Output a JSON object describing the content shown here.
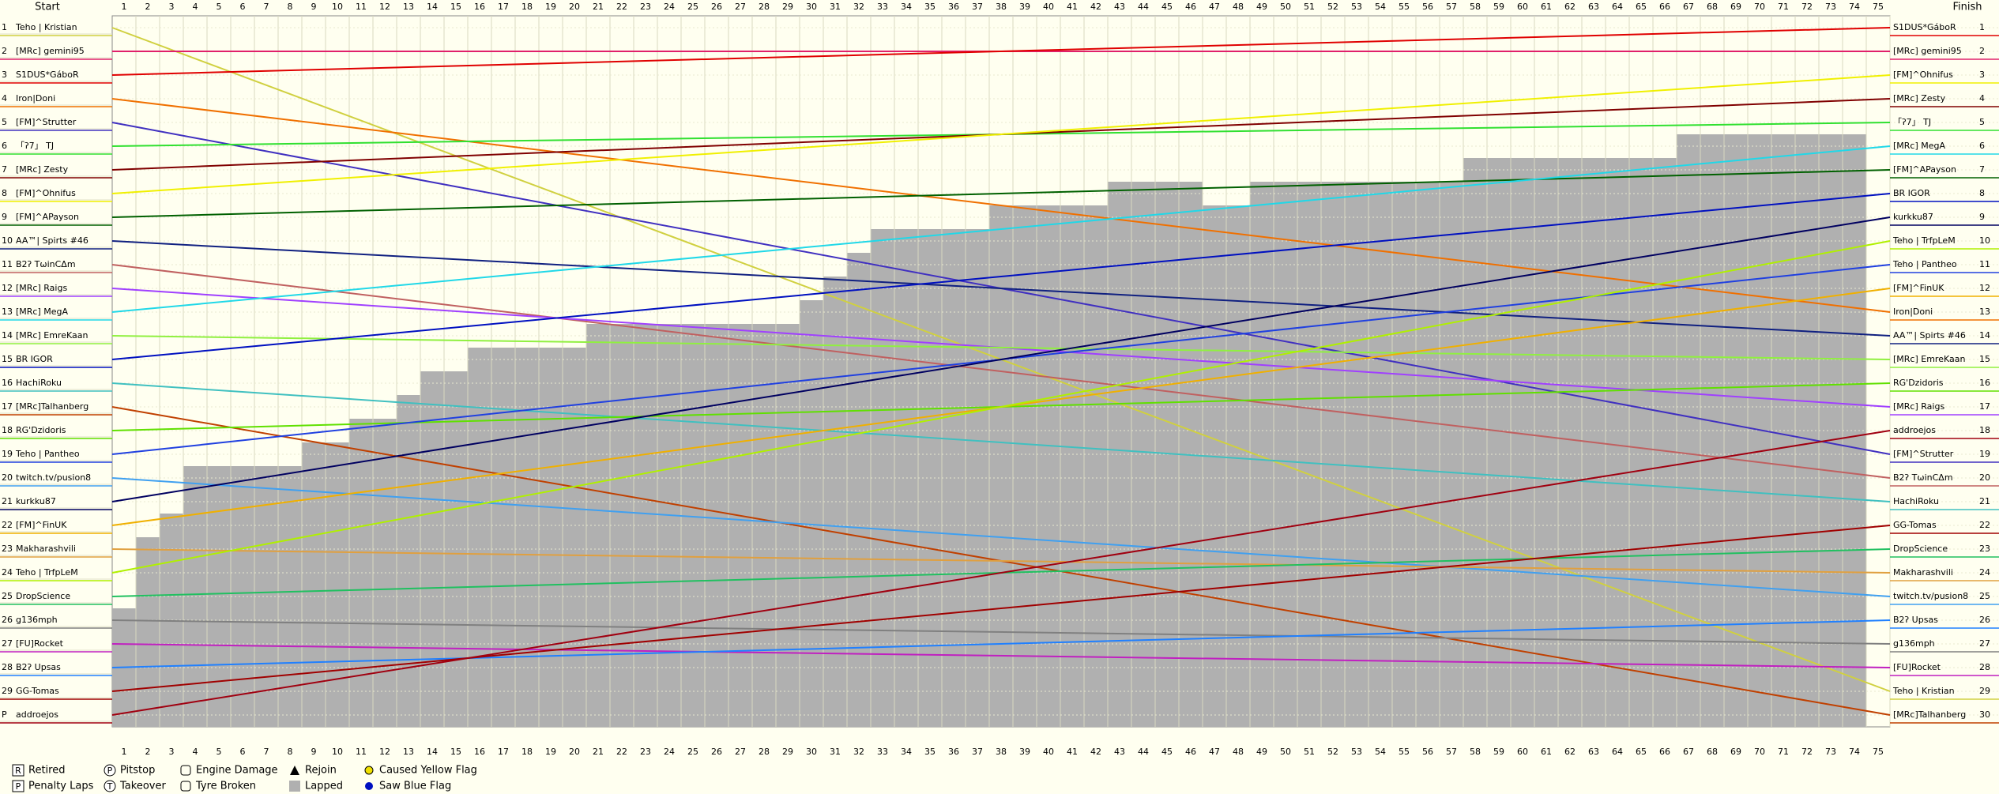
{
  "chart_data": {
    "type": "position",
    "start_title": "Start",
    "finish_title": "Finish",
    "x": [
      0,
      75
    ],
    "xlim": [
      0,
      75
    ],
    "xticks": [
      1,
      2,
      3,
      4,
      5,
      6,
      7,
      8,
      9,
      10,
      11,
      12,
      13,
      14,
      15,
      16,
      17,
      18,
      19,
      20,
      21,
      22,
      23,
      24,
      25,
      26,
      27,
      28,
      29,
      30,
      31,
      32,
      33,
      34,
      35,
      36,
      37,
      38,
      39,
      40,
      41,
      42,
      43,
      44,
      45,
      46,
      47,
      48,
      49,
      50,
      51,
      52,
      53,
      54,
      55,
      56,
      57,
      58,
      59,
      60,
      61,
      62,
      63,
      64,
      65,
      66,
      67,
      68,
      69,
      70,
      71,
      72,
      73,
      74,
      75
    ],
    "ylim": [
      1,
      30
    ],
    "yticks": [
      1,
      2,
      3,
      4,
      5,
      6,
      7,
      8,
      9,
      10,
      11,
      12,
      13,
      14,
      15,
      16,
      17,
      18,
      19,
      20,
      21,
      22,
      23,
      24,
      25,
      26,
      27,
      28,
      29,
      {
        "value": 30,
        "label": "P"
      }
    ],
    "y2ticks": [
      1,
      2,
      3,
      4,
      5,
      6,
      7,
      8,
      9,
      10,
      11,
      12,
      13,
      14,
      15,
      16,
      17,
      18,
      19,
      20,
      21,
      22,
      23,
      24,
      25,
      26,
      27,
      28,
      29,
      30
    ],
    "series": [
      {
        "name": "Teho | Kristian",
        "color": "#d0d040",
        "values": [
          1,
          29
        ]
      },
      {
        "name": "[MRc] gemini95",
        "color": "#e0206a",
        "values": [
          2,
          2
        ]
      },
      {
        "name": "S1DUS*GáboR",
        "color": "#e00000",
        "values": [
          3,
          1
        ]
      },
      {
        "name": "Iron|Doni",
        "color": "#f07000",
        "values": [
          4,
          13
        ]
      },
      {
        "name": "[FM]^Strutter",
        "color": "#4030c0",
        "values": [
          5,
          19
        ]
      },
      {
        "name": "「ʔ7」 TJ",
        "color": "#30e030",
        "values": [
          6,
          5
        ]
      },
      {
        "name": "[MRc] Zesty",
        "color": "#800000",
        "values": [
          7,
          4
        ]
      },
      {
        "name": "[FM]^Ohnifus",
        "color": "#f0f000",
        "values": [
          8,
          3
        ]
      },
      {
        "name": "[FM]^APayson",
        "color": "#006000",
        "values": [
          9,
          7
        ]
      },
      {
        "name": "AA™| Spirts #46",
        "color": "#102080",
        "values": [
          10,
          14
        ]
      },
      {
        "name": "B2ʔ TωinCΔm",
        "color": "#c06060",
        "values": [
          11,
          20
        ]
      },
      {
        "name": "[MRc] Raigs",
        "color": "#a040ff",
        "values": [
          12,
          17
        ]
      },
      {
        "name": "[MRc] MegA",
        "color": "#20d8e8",
        "values": [
          13,
          6
        ]
      },
      {
        "name": "[MRc] EmreKaan",
        "color": "#90f040",
        "values": [
          14,
          15
        ]
      },
      {
        "name": "BR IGOR",
        "color": "#0010c0",
        "values": [
          15,
          8
        ]
      },
      {
        "name": "HachiRoku",
        "color": "#40c0c0",
        "values": [
          16,
          21
        ]
      },
      {
        "name": "[MRc]Talhanberg",
        "color": "#c04000",
        "values": [
          17,
          30
        ]
      },
      {
        "name": "RG'Dzidoris",
        "color": "#60e000",
        "values": [
          18,
          16
        ]
      },
      {
        "name": "Teho | Pantheo",
        "color": "#2040e0",
        "values": [
          19,
          11
        ]
      },
      {
        "name": "twitch.tv/pusion8",
        "color": "#40a0f0",
        "values": [
          20,
          25
        ]
      },
      {
        "name": "kurkku87",
        "color": "#000060",
        "values": [
          21,
          9
        ]
      },
      {
        "name": "[FM]^FinUK",
        "color": "#f0b000",
        "values": [
          22,
          12
        ]
      },
      {
        "name": "Makharashvili",
        "color": "#e0a040",
        "values": [
          23,
          24
        ]
      },
      {
        "name": "Teho | TrfpLeM",
        "color": "#b0f000",
        "values": [
          24,
          10
        ]
      },
      {
        "name": "DropScience",
        "color": "#20c060",
        "values": [
          25,
          23
        ]
      },
      {
        "name": "g136mph",
        "color": "#808080",
        "values": [
          26,
          27
        ]
      },
      {
        "name": "[FU]Rocket",
        "color": "#c020c0",
        "values": [
          27,
          28
        ]
      },
      {
        "name": "B2ʔ Upsas",
        "color": "#2080ff",
        "values": [
          28,
          26
        ]
      },
      {
        "name": "GG-Tomas",
        "color": "#a00000",
        "values": [
          29,
          22
        ]
      },
      {
        "name": "addroejos",
        "color": "#a00010",
        "values": [
          30,
          18
        ]
      }
    ],
    "lapped_color": "#b0b0b0",
    "lapped": [
      25.5,
      22.5,
      21.5,
      19.5,
      19.5,
      19.5,
      19.5,
      19.5,
      18.5,
      18.5,
      17.5,
      17.5,
      16.5,
      15.5,
      15.5,
      14.5,
      14.5,
      14.5,
      14.5,
      14.5,
      13.5,
      13.5,
      13.5,
      13.5,
      13.5,
      13.5,
      13.5,
      13.5,
      13.5,
      12.5,
      11.5,
      10.5,
      9.5,
      9.5,
      9.5,
      9.5,
      9.5,
      8.5,
      8.5,
      8.5,
      8.5,
      8.5,
      7.5,
      7.5,
      7.5,
      7.5,
      8.5,
      8.5,
      7.5,
      7.5,
      7.5,
      7.5,
      7.5,
      7.5,
      7.5,
      7.5,
      7.5,
      6.5,
      6.5,
      6.5,
      6.5,
      6.5,
      6.5,
      6.5,
      6.5,
      6.5,
      5.5,
      5.5,
      5.5,
      5.5,
      5.5,
      5.5,
      5.5,
      5.5,
      null
    ],
    "legend": [
      {
        "symbol": "R",
        "label": "Retired"
      },
      {
        "symbol": "P",
        "label": "Penalty Laps"
      },
      {
        "symbol": "P",
        "label": "Pitstop"
      },
      {
        "symbol": "T",
        "label": "Takeover"
      },
      {
        "label": "Engine Damage"
      },
      {
        "label": "Tyre Broken"
      },
      {
        "label": "Rejoin"
      },
      {
        "label": "Lapped"
      },
      {
        "label": "Caused Yellow Flag"
      },
      {
        "label": "Saw Blue Flag"
      }
    ]
  }
}
